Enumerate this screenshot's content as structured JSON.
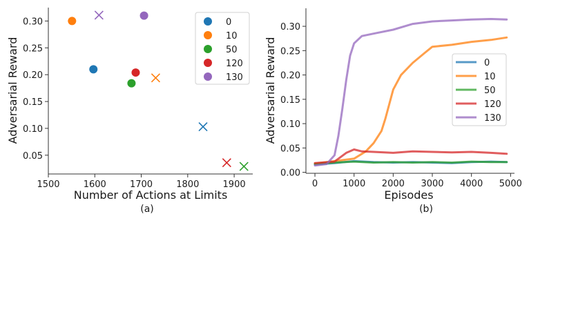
{
  "chart_data": [
    {
      "type": "scatter",
      "caption": "(a)",
      "xlabel": "Number of Actions at Limits",
      "ylabel": "Adversarial Reward",
      "xlim": [
        1500,
        1940
      ],
      "ylim": [
        0.015,
        0.325
      ],
      "xticks": [
        1500,
        1600,
        1700,
        1800,
        1900
      ],
      "yticks": [
        0.05,
        0.1,
        0.15,
        0.2,
        0.25,
        0.3
      ],
      "ytick_labels": [
        "0.05",
        "0.10",
        "0.15",
        "0.20",
        "0.25",
        "0.30"
      ],
      "grid": false,
      "legend_position": "top-right",
      "series": [
        {
          "name": "0",
          "color": "#1f77b4",
          "circle": {
            "x": 1597,
            "y": 0.21
          },
          "cross": {
            "x": 1833,
            "y": 0.103
          }
        },
        {
          "name": "10",
          "color": "#ff7f0e",
          "circle": {
            "x": 1551,
            "y": 0.3
          },
          "cross": {
            "x": 1731,
            "y": 0.194
          }
        },
        {
          "name": "50",
          "color": "#2ca02c",
          "circle": {
            "x": 1679,
            "y": 0.184
          },
          "cross": {
            "x": 1921,
            "y": 0.029
          }
        },
        {
          "name": "120",
          "color": "#d62728",
          "circle": {
            "x": 1688,
            "y": 0.204
          },
          "cross": {
            "x": 1884,
            "y": 0.036
          }
        },
        {
          "name": "130",
          "color": "#9467bd",
          "circle": {
            "x": 1706,
            "y": 0.31
          },
          "cross": {
            "x": 1609,
            "y": 0.311
          }
        }
      ]
    },
    {
      "type": "line",
      "caption": "(b)",
      "xlabel": "Episodes",
      "ylabel": "Adversarial Reward",
      "xlim": [
        -230,
        5100
      ],
      "ylim": [
        -0.002,
        0.337
      ],
      "xticks": [
        0,
        1000,
        2000,
        3000,
        4000,
        5000
      ],
      "yticks": [
        0.0,
        0.05,
        0.1,
        0.15,
        0.2,
        0.25,
        0.3
      ],
      "ytick_labels": [
        "0.00",
        "0.05",
        "0.10",
        "0.15",
        "0.20",
        "0.25",
        "0.30"
      ],
      "grid": false,
      "legend_position": "center-right",
      "series": [
        {
          "name": "0",
          "color": "#1f77b4",
          "x": [
            0,
            500,
            1000,
            1500,
            2000,
            2500,
            3000,
            3500,
            4000,
            4500,
            4900
          ],
          "values": [
            0.016,
            0.019,
            0.023,
            0.021,
            0.02,
            0.021,
            0.02,
            0.019,
            0.021,
            0.022,
            0.021
          ]
        },
        {
          "name": "10",
          "color": "#ff7f0e",
          "x": [
            0,
            500,
            1000,
            1300,
            1500,
            1700,
            1800,
            2000,
            2200,
            2500,
            2800,
            3000,
            3500,
            4000,
            4500,
            4900
          ],
          "values": [
            0.018,
            0.023,
            0.028,
            0.043,
            0.06,
            0.085,
            0.11,
            0.17,
            0.2,
            0.225,
            0.245,
            0.258,
            0.262,
            0.268,
            0.272,
            0.277
          ]
        },
        {
          "name": "50",
          "color": "#2ca02c",
          "x": [
            0,
            500,
            1000,
            1500,
            2000,
            2500,
            3000,
            3500,
            4000,
            4500,
            4900
          ],
          "values": [
            0.017,
            0.02,
            0.022,
            0.02,
            0.021,
            0.02,
            0.021,
            0.02,
            0.022,
            0.021,
            0.021
          ]
        },
        {
          "name": "120",
          "color": "#d62728",
          "x": [
            0,
            500,
            800,
            1000,
            1200,
            1500,
            2000,
            2500,
            3000,
            3500,
            4000,
            4500,
            4900
          ],
          "values": [
            0.019,
            0.022,
            0.04,
            0.047,
            0.043,
            0.042,
            0.04,
            0.043,
            0.042,
            0.041,
            0.042,
            0.04,
            0.038
          ]
        },
        {
          "name": "130",
          "color": "#9467bd",
          "x": [
            0,
            300,
            500,
            600,
            700,
            800,
            900,
            1000,
            1200,
            1500,
            2000,
            2500,
            3000,
            3500,
            4000,
            4500,
            4900
          ],
          "values": [
            0.014,
            0.017,
            0.035,
            0.075,
            0.13,
            0.19,
            0.24,
            0.265,
            0.28,
            0.285,
            0.293,
            0.305,
            0.31,
            0.312,
            0.314,
            0.315,
            0.314
          ]
        }
      ]
    }
  ]
}
